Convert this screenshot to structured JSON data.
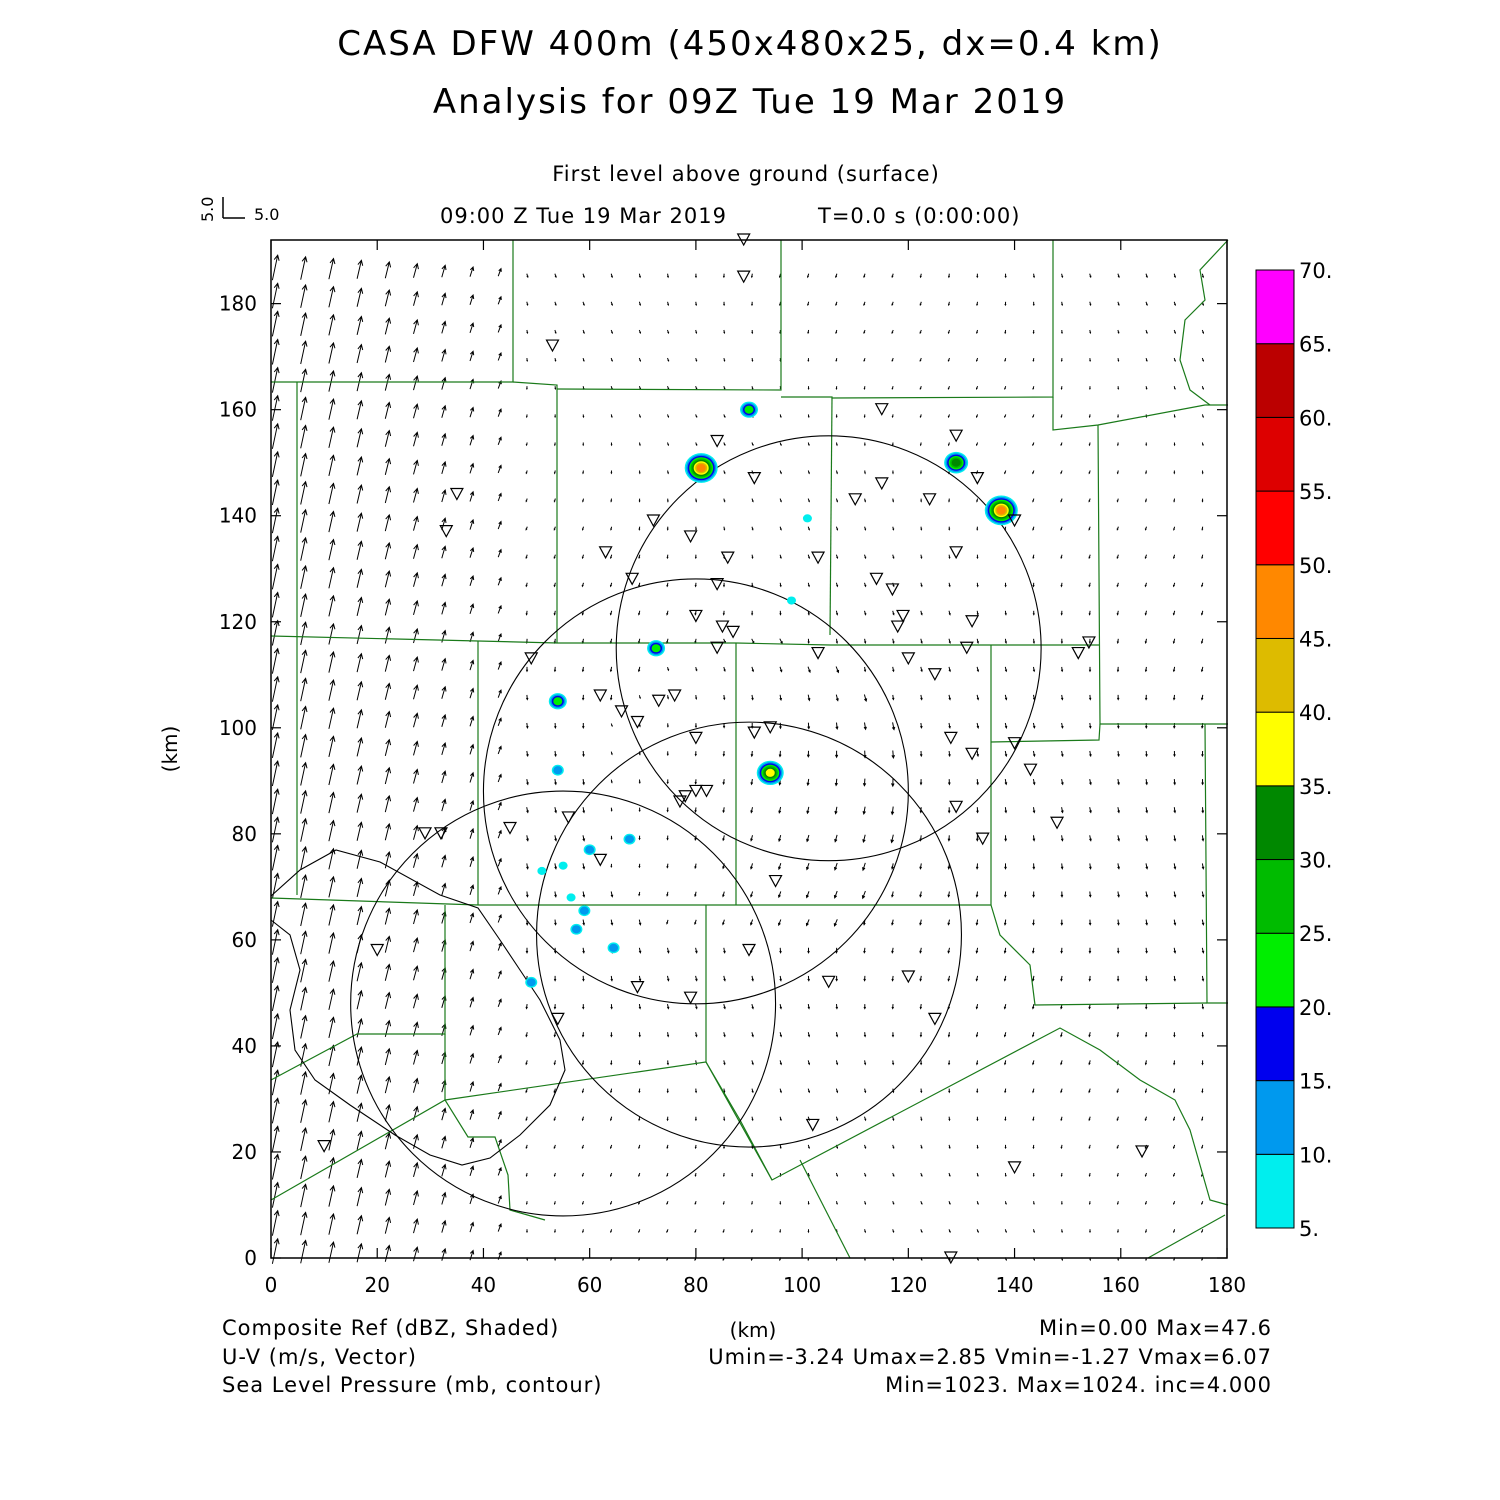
{
  "title": {
    "line1": "CASA DFW 400m (450x480x25, dx=0.4 km)",
    "line2": "Analysis for 09Z Tue 19 Mar 2019"
  },
  "subtitle": {
    "level": "First level above ground (surface)",
    "time": "09:00 Z Tue 19 Mar 2019",
    "elapsed": "T=0.0 s (0:00:00)"
  },
  "vector_key": {
    "u_label": "5.0",
    "v_label": "5.0"
  },
  "axes": {
    "xlabel": "(km)",
    "ylabel": "(km)",
    "xlim": [
      0,
      180
    ],
    "ylim": [
      0,
      192
    ],
    "xticks": [
      "0",
      "20",
      "40",
      "60",
      "80",
      "100",
      "120",
      "140",
      "160",
      "180"
    ],
    "yticks": [
      "0",
      "20",
      "40",
      "60",
      "80",
      "100",
      "120",
      "140",
      "160",
      "180"
    ]
  },
  "colorbar": {
    "labels": [
      "5.",
      "10.",
      "15.",
      "20.",
      "25.",
      "30.",
      "35.",
      "40.",
      "45.",
      "50.",
      "55.",
      "60.",
      "65.",
      "70."
    ],
    "colors": [
      "#00eeee",
      "#0099ee",
      "#0000ee",
      "#00ee00",
      "#00bb00",
      "#008800",
      "#ffff00",
      "#ddbb00",
      "#ff8800",
      "#ff0000",
      "#dd0000",
      "#bb0000",
      "#ff00ff"
    ]
  },
  "footer": {
    "field1": "Composite Ref (dBZ, Shaded)",
    "field1_stats": "Min=0.00 Max=47.6",
    "field2": "U-V (m/s, Vector)",
    "field2_stats": "Umin=-3.24 Umax=2.85 Vmin=-1.27 Vmax=6.07",
    "field3": "Sea Level Pressure (mb, contour)",
    "field3_stats": "Min=1023. Max=1024. inc=4.000"
  },
  "chart_data": {
    "type": "map",
    "radar_rings": [
      {
        "cx": 105,
        "cy": 115,
        "r": 40
      },
      {
        "cx": 80,
        "cy": 88,
        "r": 40
      },
      {
        "cx": 90,
        "cy": 61,
        "r": 40
      },
      {
        "cx": 55,
        "cy": 48,
        "r": 40
      }
    ],
    "stations": [
      [
        89,
        192
      ],
      [
        89,
        185
      ],
      [
        53,
        172
      ],
      [
        115,
        160
      ],
      [
        84,
        154
      ],
      [
        129,
        155
      ],
      [
        91,
        147
      ],
      [
        133,
        147
      ],
      [
        115,
        146
      ],
      [
        35,
        144
      ],
      [
        110,
        143
      ],
      [
        124,
        143
      ],
      [
        72,
        139
      ],
      [
        140,
        139
      ],
      [
        33,
        137
      ],
      [
        79,
        136
      ],
      [
        63,
        133
      ],
      [
        129,
        133
      ],
      [
        86,
        132
      ],
      [
        103,
        132
      ],
      [
        68,
        128
      ],
      [
        84,
        127
      ],
      [
        114,
        128
      ],
      [
        117,
        126
      ],
      [
        119,
        121
      ],
      [
        80,
        121
      ],
      [
        132,
        120
      ],
      [
        118,
        119
      ],
      [
        85,
        119
      ],
      [
        87,
        118
      ],
      [
        84,
        115
      ],
      [
        103,
        114
      ],
      [
        131,
        115
      ],
      [
        152,
        114
      ],
      [
        154,
        116
      ],
      [
        49,
        113
      ],
      [
        120,
        113
      ],
      [
        125,
        110
      ],
      [
        62,
        106
      ],
      [
        66,
        103
      ],
      [
        76,
        106
      ],
      [
        73,
        105
      ],
      [
        69,
        101
      ],
      [
        91,
        99
      ],
      [
        94,
        100
      ],
      [
        80,
        98
      ],
      [
        128,
        98
      ],
      [
        140,
        97
      ],
      [
        132,
        95
      ],
      [
        143,
        92
      ],
      [
        82,
        88
      ],
      [
        78,
        87
      ],
      [
        80,
        88
      ],
      [
        77,
        86
      ],
      [
        129,
        85
      ],
      [
        148,
        82
      ],
      [
        45,
        81
      ],
      [
        29,
        80
      ],
      [
        32,
        80
      ],
      [
        56,
        83
      ],
      [
        134,
        79
      ],
      [
        62,
        75
      ],
      [
        95,
        71
      ],
      [
        20,
        58
      ],
      [
        90,
        58
      ],
      [
        105,
        52
      ],
      [
        120,
        53
      ],
      [
        69,
        51
      ],
      [
        79,
        49
      ],
      [
        54,
        45
      ],
      [
        125,
        45
      ],
      [
        102,
        25
      ],
      [
        10,
        21
      ],
      [
        164,
        20
      ],
      [
        140,
        17
      ],
      [
        128,
        0
      ]
    ],
    "echoes": [
      {
        "x": 90,
        "y": 160,
        "dbz": 20
      },
      {
        "x": 81,
        "y": 149,
        "dbz": 45
      },
      {
        "x": 129,
        "y": 150,
        "dbz": 30
      },
      {
        "x": 137.5,
        "y": 141,
        "dbz": 47.6
      },
      {
        "x": 72.5,
        "y": 115,
        "dbz": 20
      },
      {
        "x": 54,
        "y": 105,
        "dbz": 20
      },
      {
        "x": 94,
        "y": 91.5,
        "dbz": 38
      },
      {
        "x": 54,
        "y": 92,
        "dbz": 10
      },
      {
        "x": 101,
        "y": 139.5,
        "dbz": 5
      },
      {
        "x": 98,
        "y": 124,
        "dbz": 5
      },
      {
        "x": 67.5,
        "y": 79,
        "dbz": 10
      },
      {
        "x": 60,
        "y": 77,
        "dbz": 12
      },
      {
        "x": 51,
        "y": 73,
        "dbz": 5
      },
      {
        "x": 55,
        "y": 74,
        "dbz": 5
      },
      {
        "x": 56.5,
        "y": 68,
        "dbz": 5
      },
      {
        "x": 59,
        "y": 65.5,
        "dbz": 10
      },
      {
        "x": 57.5,
        "y": 62,
        "dbz": 12
      },
      {
        "x": 64.5,
        "y": 58.5,
        "dbz": 12
      },
      {
        "x": 49,
        "y": 52,
        "dbz": 10
      }
    ]
  }
}
